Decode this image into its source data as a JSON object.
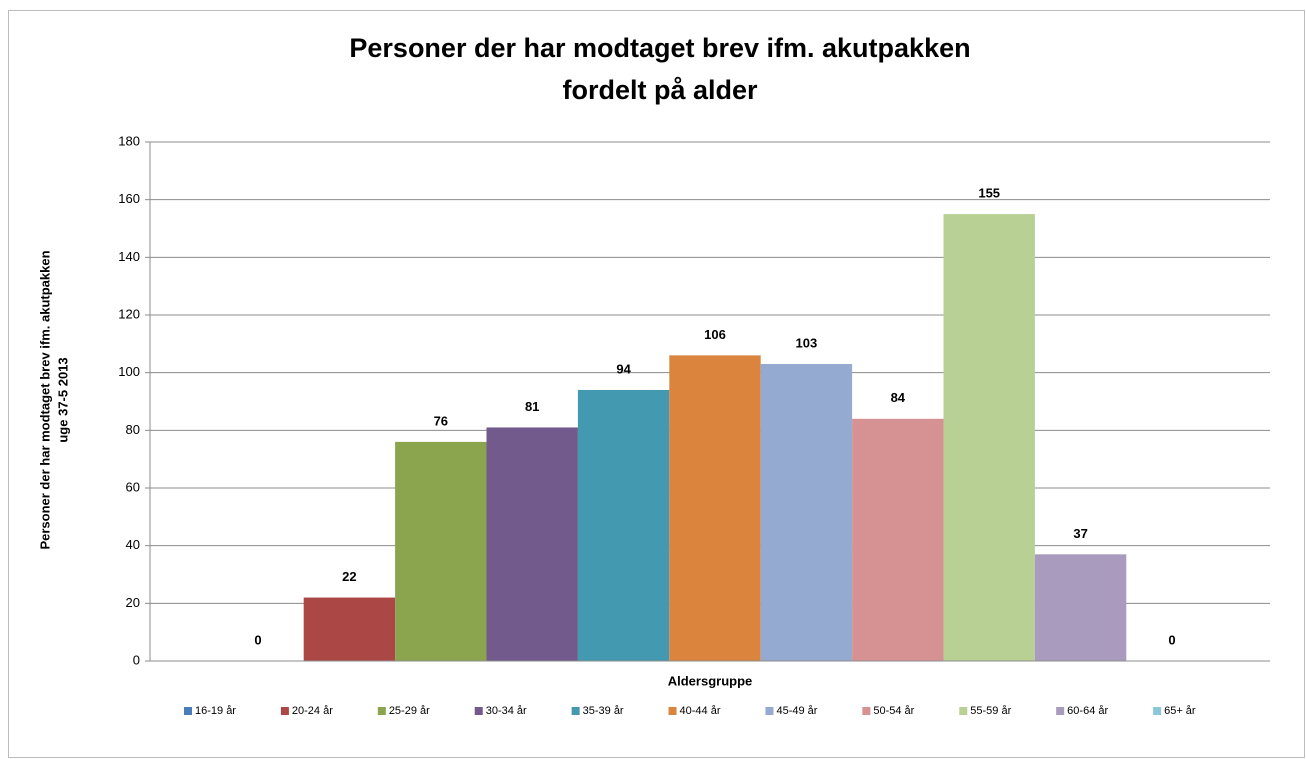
{
  "chart_data": {
    "type": "bar",
    "title": [
      "Personer der har modtaget brev ifm. akutpakken",
      "fordelt på alder"
    ],
    "y_label": [
      "Personer der har modtaget brev ifm. akutpakken",
      "uge 37-5 2013"
    ],
    "x_label": "Aldersgruppe",
    "categories": [
      "16-19 år",
      "20-24 år",
      "25-29 år",
      "30-34 år",
      "35-39 år",
      "40-44 år",
      "45-49 år",
      "50-54 år",
      "55-59 år",
      "60-64 år",
      "65+ år"
    ],
    "values": [
      0,
      22,
      76,
      81,
      94,
      106,
      103,
      84,
      155,
      37,
      0
    ],
    "colors": [
      "#4a7ebb",
      "#ab4744",
      "#8ba54e",
      "#725a8c",
      "#4299b0",
      "#db843d",
      "#94aad0",
      "#d69292",
      "#b9d095",
      "#a99bbd",
      "#8cc7d9"
    ],
    "ylim": [
      0,
      180
    ],
    "yticks": [
      0,
      20,
      40,
      60,
      80,
      100,
      120,
      140,
      160,
      180
    ],
    "grid": true,
    "legend": "bottom"
  }
}
